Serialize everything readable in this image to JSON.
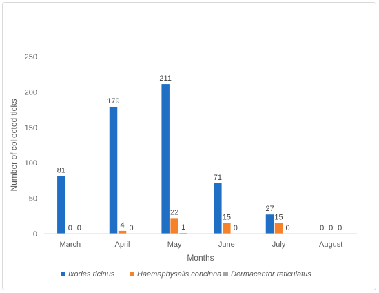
{
  "chart_data": {
    "type": "bar",
    "categories": [
      "March",
      "April",
      "May",
      "June",
      "July",
      "August"
    ],
    "series": [
      {
        "name": "Ixodes ricinus",
        "values": [
          81,
          179,
          211,
          71,
          27,
          0
        ],
        "color": "#1f6fc5"
      },
      {
        "name": "Haemaphysalis concinna",
        "values": [
          0,
          4,
          22,
          15,
          15,
          0
        ],
        "color": "#f5812a"
      },
      {
        "name": "Dermacentor reticulatus",
        "values": [
          0,
          0,
          1,
          0,
          0,
          0
        ],
        "color": "#a5a5a5"
      }
    ],
    "xlabel": "Months",
    "ylabel": "Number of collected ticks",
    "ylim": [
      0,
      250
    ],
    "yticks": [
      0,
      50,
      100,
      150,
      200,
      250
    ],
    "grid": false,
    "legend": "bottom"
  }
}
